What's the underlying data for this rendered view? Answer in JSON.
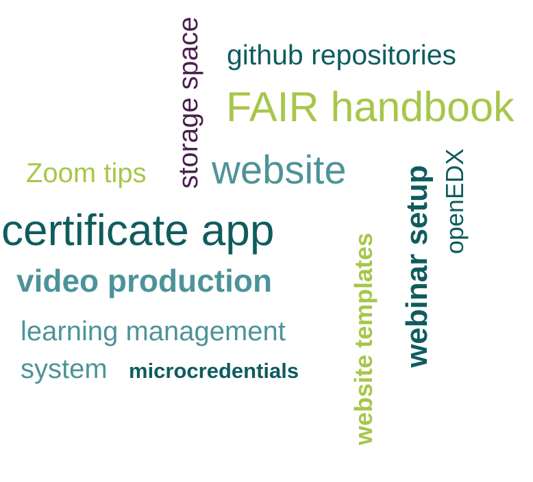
{
  "words": [
    {
      "id": "github-repositories",
      "text": "github repositories",
      "color": "#0f5c5e",
      "weight": "normal"
    },
    {
      "id": "fair-handbook",
      "text": "FAIR handbook",
      "color": "#a7c64a",
      "weight": "normal"
    },
    {
      "id": "storage-space",
      "text": "storage space",
      "color": "#4a1e4f",
      "weight": "normal"
    },
    {
      "id": "zoom-tips",
      "text": "Zoom tips",
      "color": "#a7c64a",
      "weight": "normal"
    },
    {
      "id": "website",
      "text": "website",
      "color": "#4d9399",
      "weight": "normal"
    },
    {
      "id": "certificate-app",
      "text": "certificate app",
      "color": "#0f5c5e",
      "weight": "normal"
    },
    {
      "id": "video-production",
      "text": "video production",
      "color": "#4d9399",
      "weight": "bold"
    },
    {
      "id": "learning-management",
      "text": "learning management",
      "color": "#4d9399",
      "weight": "normal"
    },
    {
      "id": "system",
      "text": "system",
      "color": "#4d9399",
      "weight": "normal"
    },
    {
      "id": "microcredentials",
      "text": "microcredentials",
      "color": "#0f5c5e",
      "weight": "bold"
    },
    {
      "id": "website-templates",
      "text": "website templates",
      "color": "#a7c64a",
      "weight": "bold"
    },
    {
      "id": "webinar-setup",
      "text": "webinar setup",
      "color": "#0f5c5e",
      "weight": "bold"
    },
    {
      "id": "openedx",
      "text": "openEDX",
      "color": "#0f5c5e",
      "weight": "normal"
    }
  ]
}
